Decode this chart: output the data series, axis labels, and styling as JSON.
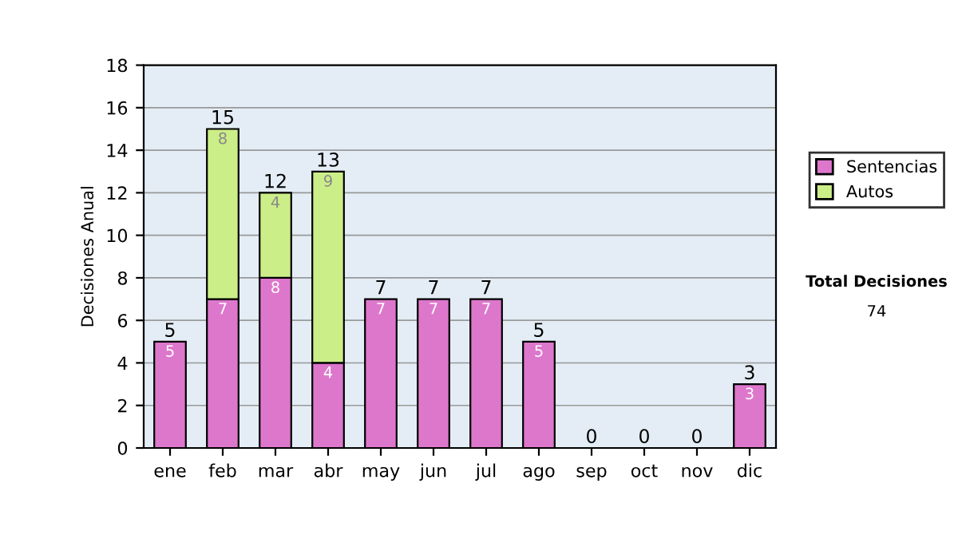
{
  "chart_data": {
    "type": "bar",
    "stacked": true,
    "ylabel": "Decisiones Anual",
    "categories": [
      "ene",
      "feb",
      "mar",
      "abr",
      "may",
      "jun",
      "jul",
      "ago",
      "sep",
      "oct",
      "nov",
      "dic"
    ],
    "series": [
      {
        "name": "Sentencias",
        "color": "#dd77cc",
        "values": [
          5,
          7,
          8,
          4,
          7,
          7,
          7,
          5,
          0,
          0,
          0,
          3
        ],
        "value_labels": [
          "5",
          "7",
          "8",
          "4",
          "7",
          "7",
          "7",
          "5",
          null,
          null,
          null,
          "3"
        ]
      },
      {
        "name": "Autos",
        "color": "#ccee88",
        "values": [
          0,
          8,
          4,
          9,
          0,
          0,
          0,
          0,
          0,
          0,
          0,
          0
        ],
        "value_labels": [
          null,
          "8",
          "4",
          "9",
          null,
          null,
          null,
          null,
          null,
          null,
          null,
          null
        ]
      }
    ],
    "totals": [
      "5",
      "15",
      "12",
      "13",
      "7",
      "7",
      "7",
      "5",
      "0",
      "0",
      "0",
      "3"
    ],
    "ylim": [
      0,
      18
    ],
    "yticks": [
      0,
      2,
      4,
      6,
      8,
      10,
      12,
      14,
      16,
      18
    ],
    "grid": "y",
    "legend": "right",
    "annotations": [
      "Total Decisiones",
      "74"
    ]
  }
}
